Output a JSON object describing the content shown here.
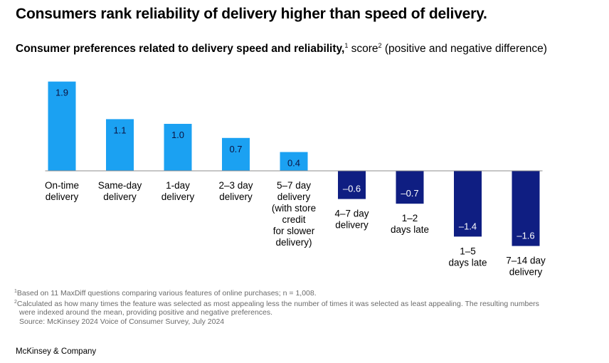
{
  "title": "Consumers rank reliability of delivery higher than speed of delivery.",
  "subtitle": {
    "bold_text": "Consumer preferences related to delivery speed and reliability,",
    "sup1": "1",
    "normal_text": " score",
    "sup2": "2",
    "tail_text": " (positive and negative difference)"
  },
  "chart_data": {
    "type": "bar",
    "categories": [
      [
        "On-time",
        "delivery"
      ],
      [
        "Same-day",
        "delivery"
      ],
      [
        "1-day",
        "delivery"
      ],
      [
        "2–3 day",
        "delivery"
      ],
      [
        "5–7 day",
        "delivery",
        "(with store",
        "credit",
        "for slower",
        "delivery)"
      ],
      [
        "4–7 day",
        "delivery"
      ],
      [
        "1–2",
        "days late"
      ],
      [
        "1–5",
        "days late"
      ],
      [
        "7–14 day",
        "delivery"
      ]
    ],
    "values": [
      1.9,
      1.1,
      1.0,
      0.7,
      0.4,
      -0.6,
      -0.7,
      -1.4,
      -1.6
    ],
    "value_labels": [
      "1.9",
      "1.1",
      "1.0",
      "0.7",
      "0.4",
      "–0.6",
      "–0.7",
      "–1.4",
      "–1.6"
    ],
    "colors": {
      "positive": "#1ba1f2",
      "negative": "#0f1e82",
      "axis": "#8c8c8c"
    },
    "ylim": [
      -1.9,
      2.0
    ]
  },
  "footnotes": [
    {
      "sup": "1",
      "text": "Based on 11 MaxDiff questions comparing various features of online purchases; n = 1,008."
    },
    {
      "sup": "2",
      "text": "Calculated as how many times the feature was selected as most appealing less the number of times it was selected as least appealing. The resulting numbers"
    },
    {
      "sup": "",
      "text": "were indexed around the mean, providing positive and negative preferences."
    },
    {
      "sup": "",
      "text": "Source: McKinsey 2024 Voice of Consumer Survey, July 2024"
    }
  ],
  "brand": "McKinsey & Company"
}
